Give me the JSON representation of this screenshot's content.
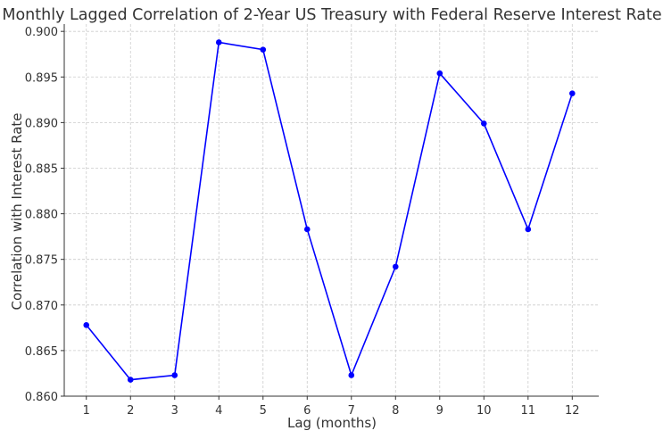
{
  "chart_data": {
    "type": "line",
    "title": "Monthly Lagged Correlation of 2-Year US Treasury with Federal Reserve Interest Rate",
    "xlabel": "Lag (months)",
    "ylabel": "Correlation with Interest Rate",
    "x": [
      1,
      2,
      3,
      4,
      5,
      6,
      7,
      8,
      9,
      10,
      11,
      12
    ],
    "series": [
      {
        "values": [
          0.8678,
          0.8618,
          0.8623,
          0.8988,
          0.898,
          0.8783,
          0.8623,
          0.8742,
          0.8954,
          0.8899,
          0.8783,
          0.8932
        ],
        "color": "#0000ff",
        "marker": "circle"
      }
    ],
    "xlim": [
      0.5,
      12.6
    ],
    "ylim": [
      0.86,
      0.9008
    ],
    "xticks": [
      "1",
      "2",
      "3",
      "4",
      "5",
      "6",
      "7",
      "8",
      "9",
      "10",
      "11",
      "12"
    ],
    "yticks": [
      "0.860",
      "0.865",
      "0.870",
      "0.875",
      "0.880",
      "0.885",
      "0.890",
      "0.895",
      "0.900"
    ],
    "grid": true
  }
}
